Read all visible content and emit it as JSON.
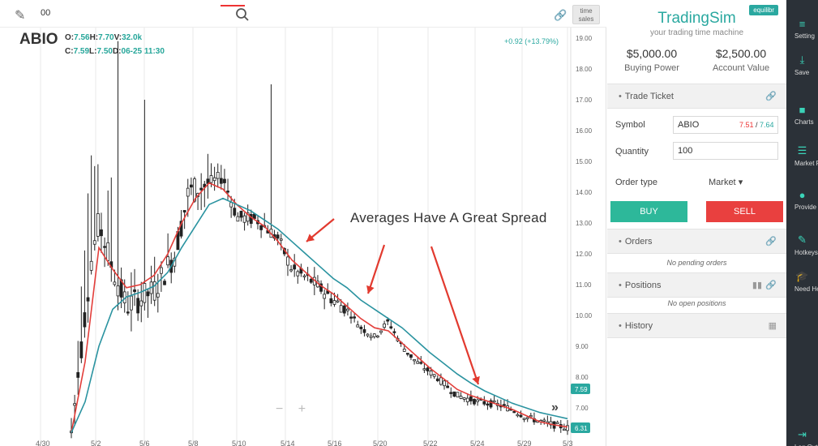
{
  "toolbar": {
    "symbol_input_value": "00",
    "time_sales_label": "time sales"
  },
  "chart": {
    "ticker": "ABIO",
    "ohlc_line1": [
      {
        "k": "O:",
        "v": "7.56"
      },
      {
        "k": "H:",
        "v": "7.70"
      },
      {
        "k": "V:",
        "v": "32.0k"
      }
    ],
    "ohlc_line2": [
      {
        "k": "C:",
        "v": "7.59"
      },
      {
        "k": "L:",
        "v": "7.50"
      },
      {
        "k": "D:",
        "v": "06-25 11:30"
      }
    ],
    "change_text": "+0.92 (+13.79%)",
    "annotation_text": "Averages Have A Great Spread",
    "price_labels": [
      "19.00",
      "18.00",
      "17.00",
      "16.00",
      "15.00",
      "14.00",
      "13.00",
      "12.00",
      "11.00",
      "10.00",
      "9.00",
      "8.00",
      "7.00"
    ],
    "date_labels": [
      "4/30",
      "5/2",
      "5/6",
      "5/8",
      "5/10",
      "5/14",
      "5/16",
      "5/20",
      "5/22",
      "5/24",
      "5/29",
      "5/3"
    ],
    "price_tag_top": "7.59",
    "price_tag_bottom": "6.31",
    "zoom_minus": "−",
    "zoom_plus": "+",
    "scroll_right": "»"
  },
  "chart_data": {
    "type": "candlestick",
    "title": "ABIO",
    "ylim": [
      6.2,
      19.4
    ],
    "y_ticks": [
      19,
      18,
      17,
      16,
      15,
      14,
      13,
      12,
      11,
      10,
      9,
      8,
      7
    ],
    "x_ticks": [
      "4/30",
      "5/2",
      "5/6",
      "5/8",
      "5/10",
      "5/14",
      "5/16",
      "5/20",
      "5/22",
      "5/24",
      "5/29",
      "5/3"
    ],
    "colors": {
      "ema_fast": "#e33e3a",
      "ema_slow": "#2a93a0",
      "up_candle": "#ffffff",
      "down_candle": "#222222"
    },
    "close_path": [
      [
        0,
        6.2
      ],
      [
        3,
        12.0
      ],
      [
        4,
        13.0
      ],
      [
        6,
        11.5
      ],
      [
        8,
        10.3
      ],
      [
        12,
        10.8
      ],
      [
        15,
        12.0
      ],
      [
        17,
        14.0
      ],
      [
        19,
        14.2
      ],
      [
        22,
        14.5
      ],
      [
        24,
        13.2
      ],
      [
        27,
        13.1
      ],
      [
        30,
        12.5
      ],
      [
        32,
        11.5
      ],
      [
        35,
        11.1
      ],
      [
        38,
        10.5
      ],
      [
        40,
        10.2
      ],
      [
        42,
        9.6
      ],
      [
        44,
        9.3
      ],
      [
        46,
        9.8
      ],
      [
        48,
        9.0
      ],
      [
        50,
        8.5
      ],
      [
        53,
        8.0
      ],
      [
        56,
        7.4
      ],
      [
        59,
        7.2
      ],
      [
        62,
        7.1
      ],
      [
        64,
        6.95
      ],
      [
        66,
        6.7
      ],
      [
        69,
        6.5
      ],
      [
        72,
        6.35
      ]
    ],
    "series": [
      {
        "name": "ema_fast",
        "points": [
          [
            0,
            6.2
          ],
          [
            2,
            8.5
          ],
          [
            4,
            12.2
          ],
          [
            6,
            11.5
          ],
          [
            8,
            10.9
          ],
          [
            10,
            11.0
          ],
          [
            12,
            11.3
          ],
          [
            14,
            12.0
          ],
          [
            16,
            13.0
          ],
          [
            18,
            13.8
          ],
          [
            20,
            14.3
          ],
          [
            22,
            14.1
          ],
          [
            24,
            13.6
          ],
          [
            26,
            13.2
          ],
          [
            28,
            12.9
          ],
          [
            30,
            12.4
          ],
          [
            32,
            11.8
          ],
          [
            34,
            11.4
          ],
          [
            36,
            11.0
          ],
          [
            38,
            10.7
          ],
          [
            40,
            10.3
          ],
          [
            42,
            9.9
          ],
          [
            44,
            9.6
          ],
          [
            46,
            9.5
          ],
          [
            48,
            9.1
          ],
          [
            50,
            8.7
          ],
          [
            52,
            8.3
          ],
          [
            54,
            7.95
          ],
          [
            56,
            7.6
          ],
          [
            58,
            7.4
          ],
          [
            60,
            7.25
          ],
          [
            62,
            7.1
          ],
          [
            64,
            6.95
          ],
          [
            66,
            6.75
          ],
          [
            68,
            6.55
          ],
          [
            70,
            6.45
          ],
          [
            72,
            6.38
          ]
        ]
      },
      {
        "name": "ema_slow",
        "points": [
          [
            0,
            6.2
          ],
          [
            2,
            7.2
          ],
          [
            4,
            9.0
          ],
          [
            6,
            10.2
          ],
          [
            8,
            10.6
          ],
          [
            10,
            10.75
          ],
          [
            12,
            10.95
          ],
          [
            14,
            11.4
          ],
          [
            16,
            12.2
          ],
          [
            18,
            12.9
          ],
          [
            20,
            13.6
          ],
          [
            22,
            13.8
          ],
          [
            24,
            13.6
          ],
          [
            26,
            13.4
          ],
          [
            28,
            13.1
          ],
          [
            30,
            12.8
          ],
          [
            32,
            12.4
          ],
          [
            34,
            12.0
          ],
          [
            36,
            11.6
          ],
          [
            38,
            11.2
          ],
          [
            40,
            10.9
          ],
          [
            42,
            10.5
          ],
          [
            44,
            10.2
          ],
          [
            46,
            9.9
          ],
          [
            48,
            9.6
          ],
          [
            50,
            9.2
          ],
          [
            52,
            8.8
          ],
          [
            54,
            8.45
          ],
          [
            56,
            8.1
          ],
          [
            58,
            7.8
          ],
          [
            60,
            7.55
          ],
          [
            62,
            7.35
          ],
          [
            64,
            7.15
          ],
          [
            66,
            7.0
          ],
          [
            68,
            6.85
          ],
          [
            70,
            6.75
          ],
          [
            72,
            6.65
          ]
        ]
      }
    ]
  },
  "panel": {
    "brand": "TradingSim",
    "tagline": "your trading time machine",
    "equilibrium_badge": "equilibr",
    "buying_power_value": "$5,000.00",
    "buying_power_label": "Buying Power",
    "account_value_value": "$2,500.00",
    "account_value_label": "Account Value",
    "trade_ticket_label": "Trade Ticket",
    "symbol_label": "Symbol",
    "symbol_value": "ABIO",
    "bid": "7.51",
    "ask": "7.64",
    "quantity_label": "Quantity",
    "quantity_value": "100",
    "order_type_label": "Order type",
    "order_type_value": "Market",
    "buy_label": "BUY",
    "sell_label": "SELL",
    "orders_label": "Orders",
    "orders_empty": "No pending orders",
    "positions_label": "Positions",
    "positions_empty": "No open positions",
    "history_label": "History"
  },
  "sidebar": {
    "items": [
      {
        "label": "Setting",
        "icon": "sliders-icon"
      },
      {
        "label": "Save",
        "icon": "download-icon"
      },
      {
        "label": "Charts",
        "icon": "chart-square-icon"
      },
      {
        "label": "Market Panel",
        "icon": "list-icon"
      },
      {
        "label": "Provide Feedback",
        "icon": "alert-shield-icon"
      },
      {
        "label": "Hotkeys",
        "icon": "edit-icon"
      },
      {
        "label": "Need Help?",
        "icon": "graduation-icon"
      },
      {
        "label": "Log Out",
        "icon": "logout-icon"
      }
    ]
  }
}
